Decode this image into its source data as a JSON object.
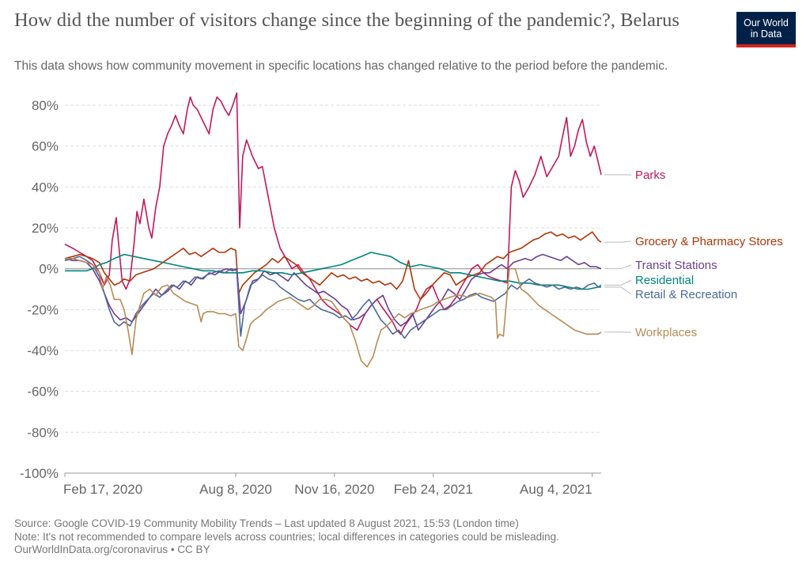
{
  "header": {
    "title": "How did the number of visitors change since the beginning of the pandemic?, Belarus",
    "subtitle": "This data shows how community movement in specific locations has changed relative to the period before the pandemic.",
    "logo_line1": "Our World",
    "logo_line2": "in Data"
  },
  "footer": {
    "source": "Source: Google COVID-19 Community Mobility Trends – Last updated 8 August 2021, 15:53 (London time)",
    "note": "Note: It's not recommended to compare levels across countries; local differences in categories could be misleading.",
    "url": "OurWorldInData.org/coronavirus • CC BY"
  },
  "chart_data": {
    "type": "line",
    "title": "How did the number of visitors change since the beginning of the pandemic?, Belarus",
    "ylabel": "",
    "xlabel": "",
    "ylim": [
      -100,
      80
    ],
    "xlim": [
      0,
      543
    ],
    "yticks": [
      -100,
      -80,
      -60,
      -40,
      -20,
      0,
      20,
      40,
      60,
      80
    ],
    "ytick_labels": [
      "-100%",
      "-80%",
      "-60%",
      "-40%",
      "-20%",
      "0%",
      "20%",
      "40%",
      "60%",
      "80%"
    ],
    "xticks": [
      {
        "day": 0,
        "label": "Feb 17, 2020"
      },
      {
        "day": 173,
        "label": "Aug 8, 2020"
      },
      {
        "day": 273,
        "label": "Nov 16, 2020"
      },
      {
        "day": 373,
        "label": "Feb 24, 2021"
      },
      {
        "day": 534,
        "label": "Aug 4, 2021"
      }
    ],
    "grid": true,
    "series": [
      {
        "name": "Parks",
        "color": "#c2185b",
        "x": [
          0,
          8,
          15,
          22,
          28,
          35,
          40,
          45,
          48,
          52,
          58,
          62,
          66,
          70,
          73,
          76,
          80,
          85,
          88,
          92,
          96,
          100,
          104,
          108,
          112,
          116,
          120,
          124,
          127,
          130,
          134,
          138,
          142,
          146,
          150,
          154,
          158,
          162,
          166,
          170,
          174,
          177,
          180,
          184,
          190,
          196,
          200,
          206,
          212,
          218,
          224,
          230,
          236,
          242,
          248,
          254,
          260,
          266,
          272,
          278,
          284,
          290,
          296,
          300,
          304,
          310,
          316,
          320,
          326,
          332,
          336,
          340,
          344,
          350,
          356,
          360,
          366,
          372,
          378,
          384,
          390,
          396,
          400,
          406,
          412,
          418,
          424,
          430,
          436,
          442,
          448,
          452,
          456,
          460,
          464,
          470,
          476,
          482,
          488,
          494,
          500,
          504,
          508,
          512,
          516,
          520,
          524,
          528,
          532,
          536,
          540,
          543
        ],
        "y": [
          12,
          10,
          8,
          6,
          4,
          -2,
          -8,
          -3,
          14,
          25,
          -6,
          -10,
          -5,
          12,
          28,
          22,
          34,
          20,
          15,
          30,
          40,
          60,
          66,
          70,
          75,
          70,
          66,
          78,
          84,
          80,
          78,
          74,
          70,
          66,
          78,
          84,
          82,
          78,
          75,
          80,
          86,
          20,
          55,
          63,
          55,
          49,
          50,
          35,
          20,
          10,
          5,
          0,
          2,
          -2,
          -5,
          -10,
          -15,
          -18,
          -20,
          -22,
          -25,
          -28,
          -30,
          -26,
          -22,
          -18,
          -15,
          -18,
          -22,
          -26,
          -30,
          -32,
          -28,
          -24,
          -20,
          -15,
          -10,
          -8,
          -15,
          -20,
          -18,
          -14,
          -10,
          -5,
          0,
          2,
          -2,
          -4,
          -5,
          -6,
          -7,
          40,
          48,
          43,
          35,
          40,
          46,
          55,
          45,
          50,
          55,
          65,
          74,
          55,
          60,
          68,
          73,
          62,
          55,
          60,
          52,
          46
        ]
      },
      {
        "name": "Grocery & Pharmacy Stores",
        "color": "#b13507",
        "x": [
          0,
          8,
          15,
          22,
          28,
          35,
          40,
          45,
          50,
          55,
          60,
          66,
          72,
          78,
          84,
          90,
          96,
          102,
          108,
          114,
          120,
          126,
          132,
          138,
          144,
          150,
          156,
          162,
          168,
          173,
          176,
          180,
          186,
          192,
          198,
          204,
          210,
          216,
          222,
          228,
          234,
          240,
          246,
          252,
          258,
          264,
          270,
          276,
          282,
          288,
          294,
          300,
          306,
          312,
          318,
          324,
          330,
          336,
          342,
          348,
          354,
          360,
          366,
          372,
          378,
          384,
          390,
          396,
          402,
          408,
          414,
          420,
          426,
          432,
          438,
          444,
          450,
          456,
          462,
          468,
          474,
          480,
          486,
          492,
          498,
          504,
          510,
          516,
          522,
          528,
          534,
          540,
          543
        ],
        "y": [
          5,
          6,
          7,
          6,
          5,
          3,
          -2,
          -5,
          -8,
          -7,
          -5,
          -6,
          -3,
          -2,
          -1,
          0,
          2,
          4,
          6,
          8,
          10,
          7,
          8,
          6,
          8,
          10,
          8,
          8,
          10,
          9,
          -12,
          -8,
          -5,
          -2,
          0,
          2,
          5,
          3,
          6,
          4,
          2,
          -2,
          -4,
          -6,
          -8,
          -5,
          -2,
          -4,
          -3,
          -5,
          -4,
          -6,
          -5,
          -7,
          -6,
          -8,
          -7,
          -10,
          -6,
          4,
          -10,
          -15,
          -12,
          -8,
          -5,
          -2,
          -3,
          -8,
          -6,
          -4,
          -3,
          -2,
          2,
          4,
          6,
          5,
          8,
          9,
          10,
          12,
          14,
          15,
          17,
          18,
          16,
          17,
          15,
          16,
          14,
          16,
          18,
          14,
          13
        ]
      },
      {
        "name": "Transit Stations",
        "color": "#6d3e91",
        "x": [
          0,
          8,
          15,
          22,
          28,
          35,
          40,
          45,
          50,
          56,
          62,
          68,
          74,
          80,
          86,
          92,
          98,
          104,
          110,
          116,
          122,
          128,
          134,
          140,
          146,
          152,
          158,
          164,
          170,
          174,
          178,
          184,
          190,
          196,
          202,
          208,
          214,
          220,
          226,
          232,
          238,
          244,
          250,
          256,
          262,
          268,
          274,
          280,
          286,
          292,
          298,
          304,
          310,
          316,
          322,
          328,
          334,
          340,
          346,
          352,
          358,
          364,
          370,
          376,
          382,
          388,
          394,
          400,
          406,
          412,
          418,
          424,
          430,
          436,
          442,
          448,
          454,
          460,
          466,
          472,
          478,
          484,
          490,
          496,
          502,
          508,
          514,
          520,
          526,
          532,
          538,
          543
        ],
        "y": [
          5,
          4,
          4,
          3,
          0,
          -6,
          -12,
          -18,
          -22,
          -25,
          -24,
          -26,
          -22,
          -18,
          -14,
          -10,
          -13,
          -11,
          -8,
          -10,
          -6,
          -8,
          -4,
          -5,
          -2,
          -3,
          -1,
          0,
          -1,
          0,
          -22,
          -15,
          -6,
          -5,
          -1,
          -3,
          -2,
          -4,
          -6,
          -2,
          -5,
          -8,
          -10,
          -12,
          -11,
          -13,
          -15,
          -18,
          -20,
          -25,
          -24,
          -22,
          -18,
          -15,
          -13,
          -20,
          -25,
          -28,
          -26,
          -22,
          -30,
          -26,
          -22,
          -18,
          -15,
          -10,
          -12,
          -15,
          -10,
          -5,
          -3,
          -2,
          -2,
          0,
          2,
          0,
          3,
          4,
          5,
          4,
          6,
          7,
          6,
          5,
          4,
          6,
          4,
          2,
          3,
          1,
          1,
          0
        ]
      },
      {
        "name": "Residential",
        "color": "#00847e",
        "x": [
          0,
          8,
          15,
          22,
          28,
          35,
          42,
          50,
          60,
          70,
          80,
          90,
          100,
          110,
          120,
          130,
          140,
          150,
          160,
          170,
          180,
          190,
          200,
          210,
          220,
          230,
          240,
          250,
          260,
          270,
          280,
          290,
          300,
          310,
          320,
          330,
          340,
          350,
          360,
          370,
          380,
          390,
          400,
          410,
          420,
          430,
          440,
          450,
          460,
          470,
          480,
          490,
          500,
          510,
          520,
          530,
          540,
          543
        ],
        "y": [
          -1,
          -1,
          -1,
          -1,
          0,
          2,
          3,
          5,
          7,
          6,
          5,
          4,
          3,
          2,
          1,
          0,
          -1,
          -1,
          -2,
          -2,
          -2,
          -1,
          -1,
          -2,
          -2,
          -3,
          -2,
          -1,
          0,
          1,
          2,
          4,
          6,
          8,
          7,
          6,
          3,
          1,
          2,
          1,
          0,
          -2,
          -2,
          -3,
          -4,
          -5,
          -6,
          -6,
          -7,
          -7,
          -8,
          -8,
          -8,
          -9,
          -10,
          -10,
          -9,
          -8
        ]
      },
      {
        "name": "Retail & Recreation",
        "color": "#4c6a9c",
        "x": [
          0,
          8,
          15,
          22,
          28,
          35,
          40,
          45,
          50,
          55,
          60,
          66,
          72,
          78,
          84,
          90,
          96,
          102,
          108,
          114,
          120,
          126,
          132,
          138,
          144,
          150,
          156,
          162,
          168,
          174,
          178,
          182,
          188,
          194,
          200,
          206,
          212,
          218,
          224,
          230,
          236,
          242,
          248,
          254,
          260,
          266,
          272,
          278,
          284,
          290,
          296,
          302,
          308,
          314,
          320,
          326,
          332,
          338,
          344,
          350,
          356,
          362,
          368,
          374,
          380,
          386,
          392,
          398,
          404,
          410,
          416,
          422,
          428,
          434,
          440,
          446,
          452,
          458,
          464,
          470,
          476,
          482,
          488,
          494,
          500,
          506,
          512,
          518,
          524,
          530,
          536,
          540,
          543
        ],
        "y": [
          4,
          5,
          6,
          4,
          2,
          -4,
          -12,
          -20,
          -26,
          -28,
          -26,
          -28,
          -22,
          -18,
          -15,
          -12,
          -14,
          -11,
          -8,
          -9,
          -6,
          -7,
          -4,
          -5,
          -3,
          -2,
          -1,
          -2,
          0,
          -1,
          -33,
          -18,
          -8,
          -6,
          -3,
          -5,
          -6,
          -9,
          -11,
          -13,
          -15,
          -16,
          -15,
          -18,
          -20,
          -21,
          -22,
          -24,
          -23,
          -25,
          -22,
          -18,
          -15,
          -20,
          -25,
          -28,
          -32,
          -30,
          -34,
          -30,
          -28,
          -26,
          -24,
          -22,
          -20,
          -20,
          -18,
          -16,
          -15,
          -13,
          -12,
          -14,
          -15,
          -16,
          -14,
          -12,
          -8,
          -10,
          -7,
          -5,
          -7,
          -8,
          -9,
          -8,
          -10,
          -9,
          -10,
          -9,
          -10,
          -8,
          -7,
          -9,
          -9
        ]
      },
      {
        "name": "Workplaces",
        "color": "#b78c55",
        "x": [
          0,
          8,
          15,
          22,
          28,
          35,
          38,
          42,
          46,
          50,
          56,
          60,
          64,
          68,
          72,
          76,
          80,
          86,
          92,
          98,
          104,
          110,
          116,
          122,
          128,
          134,
          138,
          140,
          144,
          150,
          156,
          162,
          168,
          173,
          176,
          180,
          184,
          188,
          192,
          198,
          204,
          210,
          216,
          222,
          228,
          234,
          240,
          246,
          252,
          258,
          264,
          270,
          276,
          282,
          288,
          294,
          300,
          306,
          312,
          316,
          320,
          326,
          332,
          338,
          344,
          350,
          356,
          360,
          366,
          372,
          378,
          384,
          390,
          396,
          402,
          408,
          414,
          420,
          426,
          432,
          436,
          438,
          440,
          444,
          450,
          456,
          462,
          468,
          474,
          480,
          486,
          492,
          498,
          504,
          510,
          516,
          522,
          528,
          534,
          540,
          543
        ],
        "y": [
          5,
          5,
          4,
          3,
          2,
          -2,
          -10,
          -4,
          -8,
          -15,
          -15,
          -20,
          -30,
          -42,
          -25,
          -18,
          -12,
          -10,
          -13,
          -9,
          -8,
          -12,
          -14,
          -16,
          -17,
          -18,
          -26,
          -22,
          -21,
          -21,
          -22,
          -22,
          -23,
          -22,
          -38,
          -40,
          -34,
          -27,
          -25,
          -23,
          -20,
          -18,
          -16,
          -15,
          -14,
          -16,
          -18,
          -20,
          -18,
          -15,
          -15,
          -16,
          -20,
          -24,
          -27,
          -35,
          -45,
          -48,
          -43,
          -36,
          -30,
          -28,
          -25,
          -22,
          -24,
          -22,
          -21,
          -20,
          -19,
          -18,
          -16,
          -15,
          -14,
          -13,
          -13,
          -14,
          -13,
          -12,
          -13,
          -14,
          -16,
          -34,
          -32,
          -33,
          0,
          0,
          -10,
          -12,
          -15,
          -18,
          -20,
          -22,
          -24,
          -26,
          -28,
          -30,
          -31,
          -32,
          -32,
          -32,
          -31
        ]
      }
    ]
  }
}
